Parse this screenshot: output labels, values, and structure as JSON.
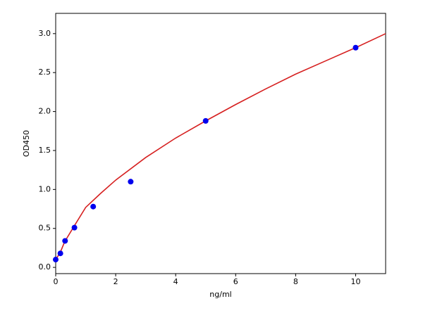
{
  "chart_data": {
    "type": "scatter",
    "xlabel": "ng/ml",
    "ylabel": "OD450",
    "xlim": [
      0,
      11
    ],
    "ylim": [
      -0.08,
      3.26
    ],
    "xticks": [
      0,
      2,
      4,
      6,
      8,
      10
    ],
    "yticks": [
      {
        "value": 0,
        "label": "0.0"
      },
      0.5,
      {
        "value": 1,
        "label": "1.0"
      },
      1.5,
      {
        "value": 2,
        "label": "2.0"
      },
      2.5,
      {
        "value": 3,
        "label": "3.0"
      }
    ],
    "series": [
      {
        "style": "line",
        "color": "#d62020",
        "x": [
          0,
          0.15,
          0.3,
          0.6,
          1,
          1.5,
          2,
          3,
          4,
          5,
          6,
          7,
          8,
          9,
          10,
          11
        ],
        "values": [
          0.1,
          0.19,
          0.33,
          0.52,
          0.77,
          0.95,
          1.12,
          1.41,
          1.66,
          1.88,
          2.09,
          2.29,
          2.48,
          2.65,
          2.82,
          3.0
        ]
      },
      {
        "style": "markers",
        "color": "#0000ee",
        "x": [
          0,
          0.156,
          0.3125,
          0.625,
          1.25,
          2.5,
          5,
          10
        ],
        "values": [
          0.1,
          0.18,
          0.34,
          0.51,
          0.78,
          1.1,
          1.88,
          2.82
        ]
      }
    ]
  }
}
